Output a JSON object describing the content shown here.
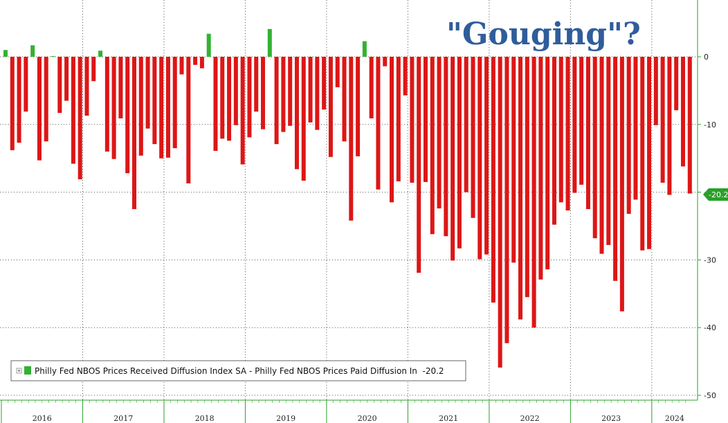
{
  "chart_data": {
    "type": "bar",
    "annotation": "\"Gouging\"?",
    "xlabel": "",
    "ylabel": "",
    "ylim": [
      -50,
      8
    ],
    "yticks": [
      0,
      -10,
      -20,
      -30,
      -40,
      -50
    ],
    "year_labels": [
      "2016",
      "2017",
      "2018",
      "2019",
      "2020",
      "2021",
      "2022",
      "2023",
      "2024"
    ],
    "grid": true,
    "legend_position": "bottom-left",
    "last_value_label": "-20.2",
    "colors": {
      "positive": "#33b233",
      "negative": "#dd1616",
      "annotation": "#2f5d9b",
      "last_label_bg": "#2aa02a"
    },
    "series": [
      {
        "name": "Philly Fed NBOS Prices Received Diffusion Index SA - Philly Fed NBOS Prices Paid Diffusion In  -20.2",
        "start": "2016-01",
        "end": "2024-06",
        "values": [
          1.0,
          -13.8,
          -12.7,
          -8.1,
          1.7,
          -15.3,
          -12.5,
          0.1,
          -8.3,
          -6.5,
          -15.8,
          -18.1,
          -8.7,
          -3.6,
          0.9,
          -14.0,
          -15.1,
          -9.1,
          -17.2,
          -22.5,
          -14.6,
          -10.6,
          -12.9,
          -15.0,
          -14.9,
          -13.5,
          -2.6,
          -18.7,
          -1.2,
          -1.7,
          3.4,
          -13.9,
          -12.1,
          -12.4,
          -10.1,
          -15.9,
          -11.9,
          -8.1,
          -10.7,
          4.1,
          -12.9,
          -11.1,
          -10.2,
          -16.6,
          -18.3,
          -9.7,
          -10.8,
          -7.8,
          -14.8,
          -4.5,
          -12.5,
          -24.2,
          -14.7,
          2.3,
          -9.1,
          -19.6,
          -1.4,
          -21.5,
          -18.4,
          -5.7,
          -18.6,
          -31.9,
          -18.5,
          -26.2,
          -22.4,
          -26.5,
          -30.1,
          -28.3,
          -20.0,
          -23.8,
          -29.9,
          -29.2,
          -36.3,
          -45.9,
          -42.3,
          -30.4,
          -38.8,
          -35.5,
          -40.0,
          -32.9,
          -31.4,
          -24.8,
          -21.5,
          -22.7,
          -20.1,
          -18.9,
          -22.5,
          -26.8,
          -29.1,
          -27.8,
          -33.1,
          -37.6,
          -23.2,
          -21.1,
          -28.6,
          -28.4,
          -10.1,
          -18.6,
          -20.4,
          -7.9,
          -16.2,
          -20.2
        ]
      }
    ]
  }
}
